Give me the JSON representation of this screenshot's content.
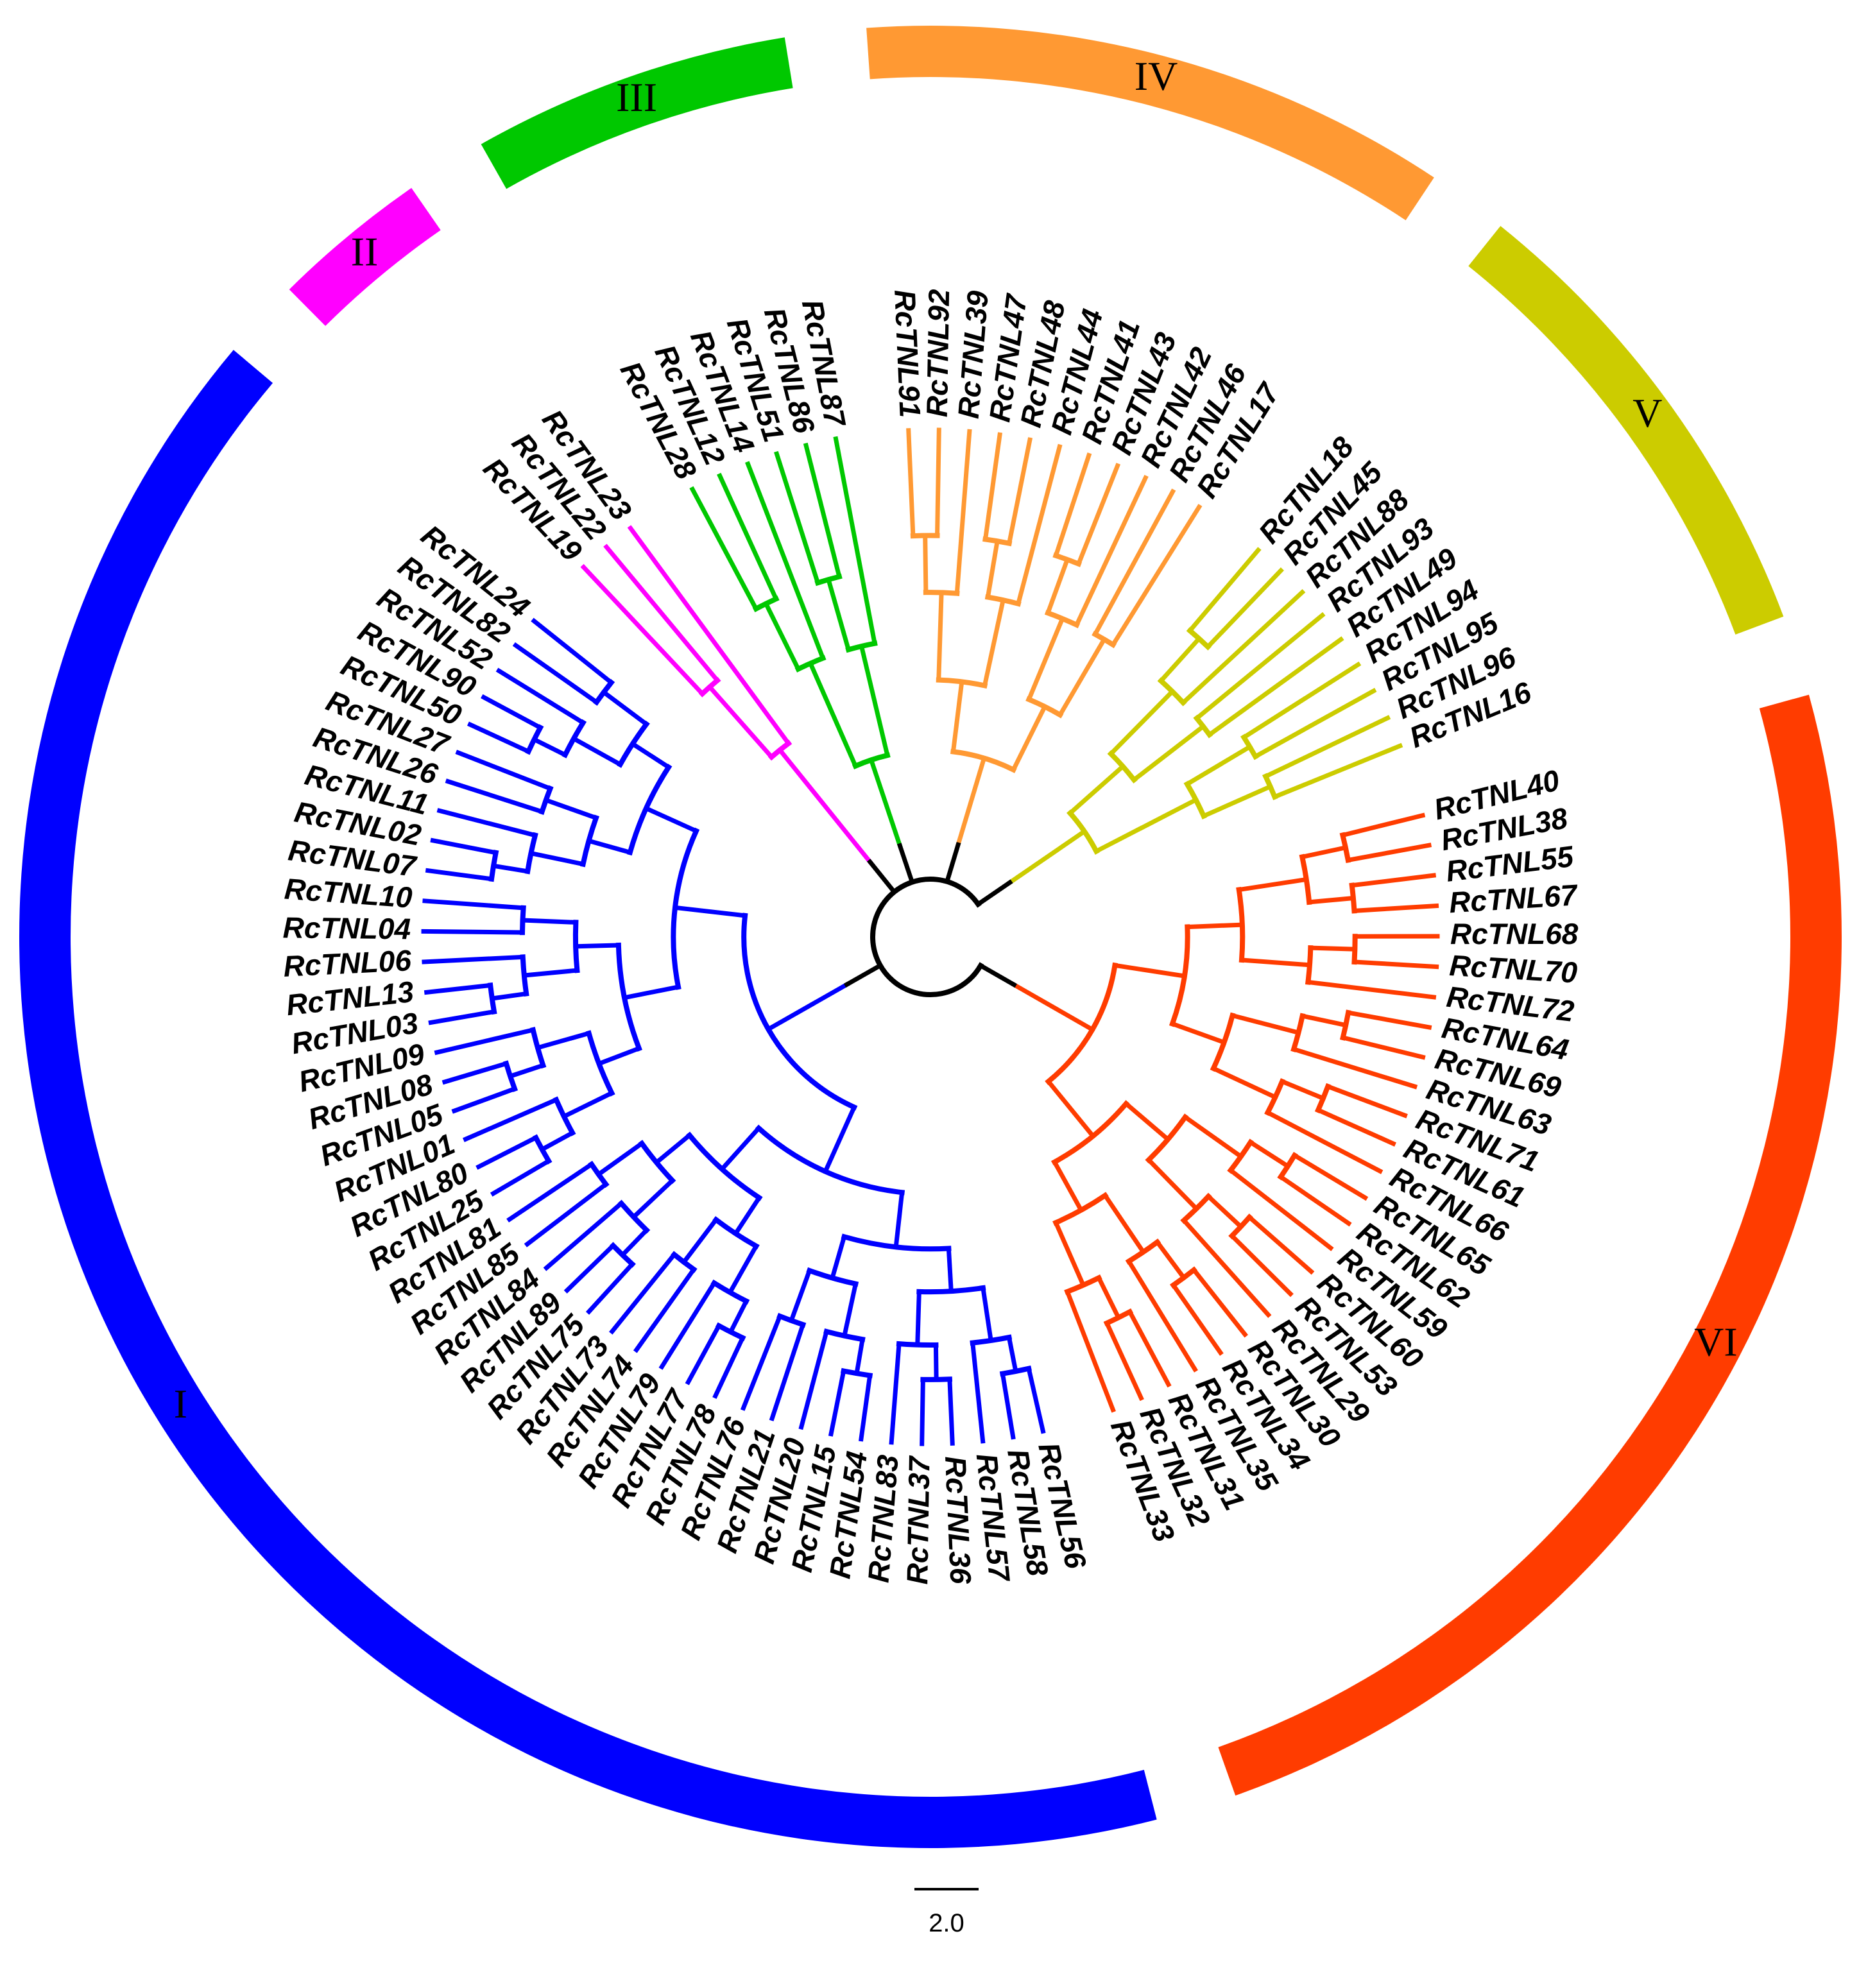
{
  "clades": [
    {
      "label": "VI",
      "color": "#ff3c00",
      "leaves": [
        "RcTNL40",
        "RcTNL38",
        "RcTNL55",
        "RcTNL67",
        "RcTNL68",
        "RcTNL70",
        "RcTNL72",
        "RcTNL64",
        "RcTNL69",
        "RcTNL63",
        "RcTNL71",
        "RcTNL61",
        "RcTNL66",
        "RcTNL65",
        "RcTNL62",
        "RcTNL59",
        "RcTNL60",
        "RcTNL53",
        "RcTNL29",
        "RcTNL30",
        "RcTNL34",
        "RcTNL35",
        "RcTNL31",
        "RcTNL32",
        "RcTNL33"
      ]
    },
    {
      "label": "I",
      "color": "#0000ff",
      "leaves": [
        "RcTNL56",
        "RcTNL58",
        "RcTNL57",
        "RcTNL36",
        "RcTNL37",
        "RcTNL83",
        "RcTNL54",
        "RcTNL15",
        "RcTNL20",
        "RcTNL21",
        "RcTNL76",
        "RcTNL78",
        "RcTNL77",
        "RcTNL79",
        "RcTNL74",
        "RcTNL73",
        "RcTNL75",
        "RcTNL89",
        "RcTNL84",
        "RcTNL85",
        "RcTNL81",
        "RcTNL25",
        "RcTNL80",
        "RcTNL01",
        "RcTNL05",
        "RcTNL08",
        "RcTNL09",
        "RcTNL03",
        "RcTNL13",
        "RcTNL06",
        "RcTNL04",
        "RcTNL10",
        "RcTNL07",
        "RcTNL02",
        "RcTNL11",
        "RcTNL26",
        "RcTNL27",
        "RcTNL50",
        "RcTNL90",
        "RcTNL52",
        "RcTNL82",
        "RcTNL24"
      ]
    },
    {
      "label": "II",
      "color": "#ff00ff",
      "leaves": [
        "RcTNL19",
        "RcTNL22",
        "RcTNL23"
      ]
    },
    {
      "label": "III",
      "color": "#00c800",
      "leaves": [
        "RcTNL28",
        "RcTNL12",
        "RcTNL14",
        "RcTNL51",
        "RcTNL86",
        "RcTNL87"
      ]
    },
    {
      "label": "IV",
      "color": "#ff9933",
      "leaves": [
        "RcTNL91",
        "RcTNL92",
        "RcTNL39",
        "RcTNL47",
        "RcTNL48",
        "RcTNL44",
        "RcTNL41",
        "RcTNL43",
        "RcTNL42",
        "RcTNL46",
        "RcTNL17"
      ]
    },
    {
      "label": "V",
      "color": "#cccc00",
      "leaves": [
        "RcTNL18",
        "RcTNL45",
        "RcTNL88",
        "RcTNL93",
        "RcTNL49",
        "RcTNL94",
        "RcTNL95",
        "RcTNL96",
        "RcTNL16"
      ]
    }
  ],
  "backbone_color": "#000000",
  "scale_bar": {
    "label": "2.0"
  }
}
